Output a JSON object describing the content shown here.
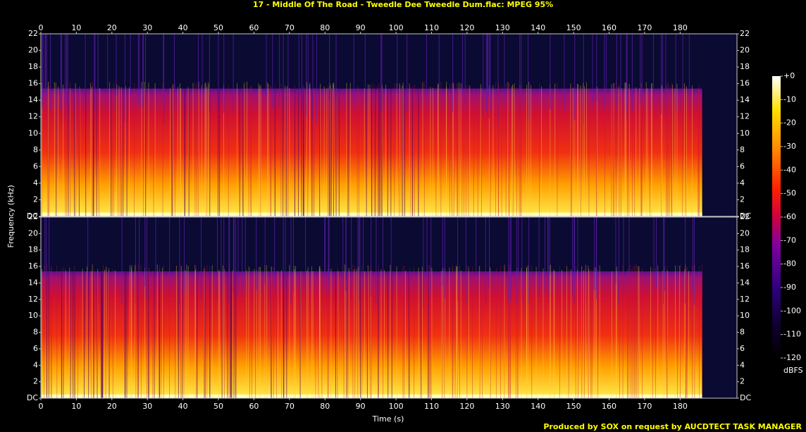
{
  "chart_data": {
    "type": "spectrogram",
    "title": "17 - Middle Of The Road - Tweedle Dee Tweedle Dum.flac: MPEG 95%",
    "x_label": "Time (s)",
    "y_label": "Frequency (kHz)",
    "xlim": [
      0,
      196
    ],
    "xticks": [
      0,
      10,
      20,
      30,
      40,
      50,
      60,
      70,
      80,
      90,
      100,
      110,
      120,
      130,
      140,
      150,
      160,
      170,
      180
    ],
    "ylim": [
      0,
      22
    ],
    "yticks": [
      {
        "value": 0,
        "label": "DC"
      },
      2,
      4,
      6,
      8,
      10,
      12,
      14,
      16,
      18,
      20,
      22
    ],
    "colorbar_label": "dBFS",
    "colorbar_lim": [
      -120,
      0
    ],
    "colorbar_ticks": [
      {
        "value": 0,
        "label": "+0"
      },
      -10,
      -20,
      -30,
      -40,
      -50,
      -60,
      -70,
      -80,
      -90,
      -100,
      -110,
      -120
    ],
    "footer": "Produced by SOX on request by AUCDTECT TASK MANAGER"
  }
}
